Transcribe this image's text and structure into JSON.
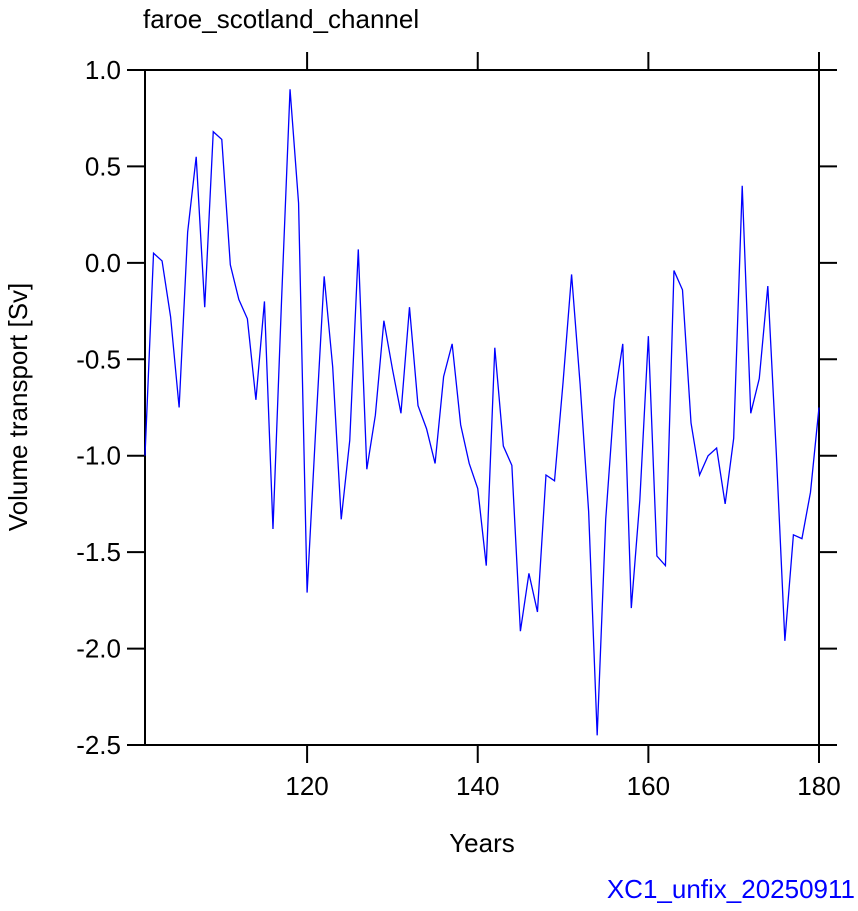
{
  "chart_data": {
    "type": "line",
    "title": "faroe_scotland_channel",
    "xlabel": "Years",
    "ylabel": "Volume transport [Sv]",
    "footnote": "XC1_unfix_20250911",
    "x": [
      101,
      102,
      103,
      104,
      105,
      106,
      107,
      108,
      109,
      110,
      111,
      112,
      113,
      114,
      115,
      116,
      117,
      118,
      119,
      120,
      121,
      122,
      123,
      124,
      125,
      126,
      127,
      128,
      129,
      130,
      131,
      132,
      133,
      134,
      135,
      136,
      137,
      138,
      139,
      140,
      141,
      142,
      143,
      144,
      145,
      146,
      147,
      148,
      149,
      150,
      151,
      152,
      153,
      154,
      155,
      156,
      157,
      158,
      159,
      160,
      161,
      162,
      163,
      164,
      165,
      166,
      167,
      168,
      169,
      170,
      171,
      172,
      173,
      174,
      175,
      176,
      177,
      178,
      179,
      180
    ],
    "series": [
      {
        "name": "faroe_scotland_channel",
        "color": "#0000ff",
        "values": [
          -1.0,
          0.05,
          0.01,
          -0.28,
          -0.75,
          0.16,
          0.55,
          -0.23,
          0.68,
          0.64,
          -0.01,
          -0.19,
          -0.29,
          -0.71,
          -0.2,
          -1.38,
          -0.2,
          0.9,
          0.31,
          -1.71,
          -0.87,
          -0.07,
          -0.54,
          -1.33,
          -0.92,
          0.07,
          -1.07,
          -0.79,
          -0.3,
          -0.55,
          -0.78,
          -0.23,
          -0.74,
          -0.86,
          -1.04,
          -0.59,
          -0.42,
          -0.84,
          -1.04,
          -1.17,
          -1.57,
          -0.44,
          -0.95,
          -1.05,
          -1.91,
          -1.61,
          -1.81,
          -1.1,
          -1.13,
          -0.62,
          -0.06,
          -0.63,
          -1.29,
          -2.45,
          -1.33,
          -0.71,
          -0.42,
          -1.79,
          -1.23,
          -0.38,
          -1.52,
          -1.57,
          -0.04,
          -0.14,
          -0.83,
          -1.1,
          -1.0,
          -0.96,
          -1.25,
          -0.91,
          0.4,
          -0.78,
          -0.6,
          -0.12,
          -0.99,
          -1.96,
          -1.41,
          -1.43,
          -1.19,
          -0.75
        ]
      }
    ],
    "xlim": [
      101,
      180
    ],
    "xticks": [
      120,
      140,
      160,
      180
    ],
    "ylim": [
      -2.5,
      1.0
    ],
    "yticks": [
      {
        "value": -2.5,
        "label": "-2.5"
      },
      {
        "value": -2.0,
        "label": "-2.0"
      },
      {
        "value": -1.5,
        "label": "-1.5"
      },
      {
        "value": -1.0,
        "label": "-1.0"
      },
      {
        "value": -0.5,
        "label": "-0.5"
      },
      {
        "value": 0,
        "label": "0.0"
      },
      {
        "value": 0.5,
        "label": "0.5"
      },
      {
        "value": 1.0,
        "label": "1.0"
      }
    ]
  }
}
